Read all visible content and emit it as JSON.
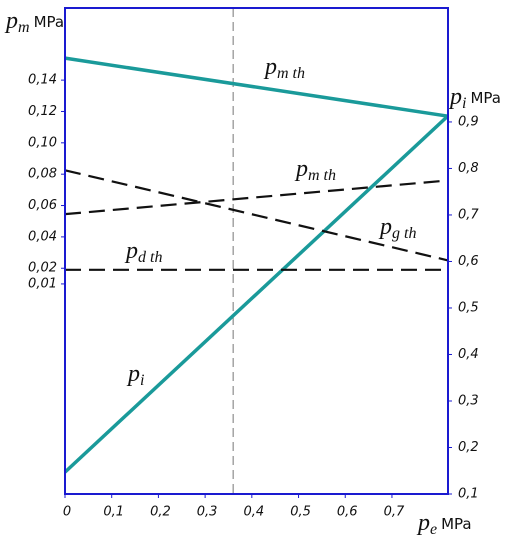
{
  "chart_data": {
    "type": "line",
    "x_label": {
      "symbol": "p",
      "sub": "e",
      "unit": "MPa"
    },
    "y_label": {
      "symbol": "p",
      "sub": "m",
      "unit": "MPa"
    },
    "y2_label": {
      "symbol": "p",
      "sub": "i",
      "unit": "MPa"
    },
    "x": [
      0,
      0.82
    ],
    "xlim": [
      0,
      0.82
    ],
    "xticks": [
      0,
      {
        "value": 0.1,
        "label": "0,1"
      },
      {
        "value": 0.2,
        "label": "0,2"
      },
      {
        "value": 0.3,
        "label": "0,3"
      },
      {
        "value": 0.4,
        "label": "0,4"
      },
      {
        "value": 0.5,
        "label": "0,5"
      },
      {
        "value": 0.6,
        "label": "0,6"
      },
      {
        "value": 0.7,
        "label": "0,7"
      }
    ],
    "ylim": [
      -0.124,
      0.186
    ],
    "yticks": [
      {
        "value": 0.14,
        "label": "0,14"
      },
      {
        "value": 0.12,
        "label": "0,12"
      },
      {
        "value": 0.1,
        "label": "0,10"
      },
      {
        "value": 0.08,
        "label": "0,08"
      },
      {
        "value": 0.06,
        "label": "0,06"
      },
      {
        "value": 0.04,
        "label": "0,04"
      },
      {
        "value": 0.02,
        "label": "0,02"
      },
      {
        "value": 0.01,
        "label": "0,01"
      }
    ],
    "y2lim": [
      0.1,
      1.145
    ],
    "y2ticks": [
      {
        "value": 0.9,
        "label": "0,9"
      },
      {
        "value": 0.8,
        "label": "0,8"
      },
      {
        "value": 0.7,
        "label": "0,7"
      },
      {
        "value": 0.6,
        "label": "0,6"
      },
      {
        "value": 0.5,
        "label": "0,5"
      },
      {
        "value": 0.4,
        "label": "0,4"
      },
      {
        "value": 0.3,
        "label": "0,3"
      },
      {
        "value": 0.2,
        "label": "0,2"
      },
      {
        "value": 0.1,
        "label": "0,1"
      }
    ],
    "vline": 0.36,
    "frame_color": "#1a1ad0",
    "series": [
      {
        "name": "p",
        "name_sub": "m th",
        "color": "#1a9a9a",
        "dashed": false,
        "axis": "y",
        "values": [
          0.154,
          0.117
        ]
      },
      {
        "name": "p",
        "name_sub": "i",
        "color": "#1a9a9a",
        "dashed": false,
        "axis": "y2",
        "values": [
          0.147,
          0.913
        ]
      },
      {
        "name": "p",
        "name_sub": "m th",
        "color": "#111111",
        "dashed": true,
        "axis": "y",
        "values": [
          0.0545,
          0.076
        ]
      },
      {
        "name": "p",
        "name_sub": "g th",
        "color": "#111111",
        "dashed": true,
        "axis": "y",
        "values": [
          0.0825,
          0.025
        ]
      },
      {
        "name": "p",
        "name_sub": "d th",
        "color": "#111111",
        "dashed": true,
        "axis": "y",
        "values": [
          0.019,
          0.019
        ]
      }
    ]
  }
}
